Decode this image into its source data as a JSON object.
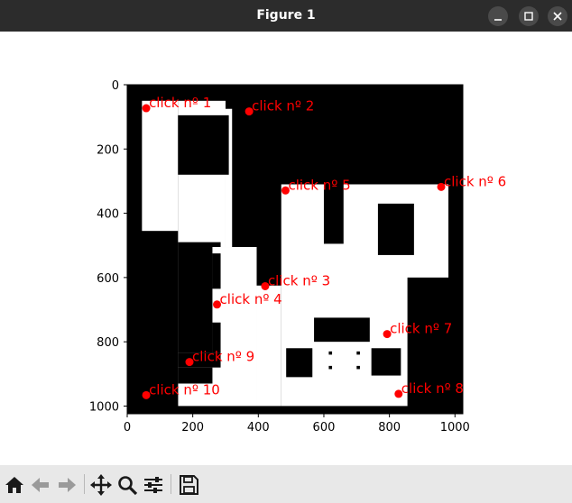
{
  "window": {
    "title": "Figure 1"
  },
  "toolbar": {
    "buttons": [
      {
        "name": "home-button",
        "icon": "home-icon"
      },
      {
        "name": "back-button",
        "icon": "arrow-left-icon"
      },
      {
        "name": "forward-button",
        "icon": "arrow-right-icon"
      },
      {
        "name": "pan-button",
        "icon": "move-icon"
      },
      {
        "name": "zoom-button",
        "icon": "magnifier-icon"
      },
      {
        "name": "configure-subplots-button",
        "icon": "sliders-icon"
      },
      {
        "name": "save-button",
        "icon": "floppy-disk-icon"
      }
    ]
  },
  "chart_data": {
    "type": "scatter",
    "title": "",
    "xlabel": "",
    "ylabel": "",
    "xlim": [
      0,
      1024
    ],
    "ylim": [
      1024,
      0
    ],
    "xticks": [
      0,
      200,
      400,
      600,
      800,
      1000
    ],
    "yticks": [
      0,
      200,
      400,
      600,
      800,
      1000
    ],
    "grid": false,
    "marker_color": "#ff0000",
    "label_color": "#ff0000",
    "map_colors": {
      "wall": "#000000",
      "floor": "#ffffff"
    },
    "points": [
      {
        "x": 58,
        "y": 73,
        "label": "click nº 1"
      },
      {
        "x": 372,
        "y": 83,
        "label": "click nº 2"
      },
      {
        "x": 421,
        "y": 627,
        "label": "click nº 3"
      },
      {
        "x": 274,
        "y": 684,
        "label": "click nº 4"
      },
      {
        "x": 483,
        "y": 329,
        "label": "click nº 5"
      },
      {
        "x": 958,
        "y": 318,
        "label": "click nº 6"
      },
      {
        "x": 793,
        "y": 776,
        "label": "click nº 7"
      },
      {
        "x": 828,
        "y": 962,
        "label": "click nº 8"
      },
      {
        "x": 190,
        "y": 863,
        "label": "click nº 9"
      },
      {
        "x": 58,
        "y": 966,
        "label": "click nº 10"
      }
    ],
    "image": {
      "extent": [
        0,
        1024,
        1024,
        0
      ],
      "background": "wall",
      "floor_rects": [
        [
          45,
          50,
          155,
          930
        ],
        [
          155,
          50,
          300,
          505
        ],
        [
          300,
          75,
          320,
          505
        ],
        [
          155,
          505,
          395,
          1000
        ],
        [
          395,
          625,
          470,
          1000
        ],
        [
          470,
          310,
          980,
          1000
        ],
        [
          855,
          980,
          980,
          1000
        ]
      ],
      "wall_rects": [
        [
          155,
          95,
          310,
          280
        ],
        [
          0,
          455,
          155,
          1024
        ],
        [
          155,
          490,
          285,
          505
        ],
        [
          155,
          505,
          260,
          835
        ],
        [
          260,
          525,
          285,
          635
        ],
        [
          260,
          740,
          285,
          835
        ],
        [
          155,
          835,
          285,
          880
        ],
        [
          155,
          880,
          260,
          930
        ],
        [
          0,
          930,
          45,
          1024
        ],
        [
          45,
          1000,
          855,
          1024
        ],
        [
          600,
          310,
          660,
          495
        ],
        [
          765,
          370,
          875,
          530
        ],
        [
          855,
          600,
          1024,
          1024
        ],
        [
          570,
          725,
          740,
          800
        ],
        [
          485,
          820,
          565,
          910
        ],
        [
          745,
          820,
          835,
          905
        ]
      ],
      "dots": [
        [
          620,
          835
        ],
        [
          620,
          880
        ],
        [
          705,
          835
        ],
        [
          705,
          880
        ]
      ]
    }
  }
}
